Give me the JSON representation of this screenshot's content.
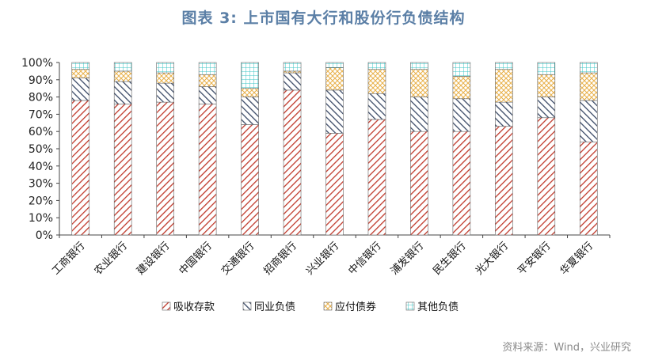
{
  "header": {
    "title": "图表 3:   上市国有大行和股份行负债结构"
  },
  "footer": {
    "source": "资料来源：Wind，兴业研究"
  },
  "chart_data": {
    "type": "bar",
    "stacked": true,
    "categories": [
      "工商银行",
      "农业银行",
      "建设银行",
      "中国银行",
      "交通银行",
      "招商银行",
      "兴业银行",
      "中信银行",
      "浦发银行",
      "民生银行",
      "光大银行",
      "平安银行",
      "华夏银行"
    ],
    "series": [
      {
        "name": "吸收存款",
        "color": "#c0392b",
        "values": [
          78,
          76,
          77,
          76,
          64,
          84,
          59,
          67,
          60,
          60,
          63,
          68,
          54
        ]
      },
      {
        "name": "同业负债",
        "color": "#3b4a66",
        "values": [
          13,
          13,
          11,
          10,
          16,
          10,
          25,
          15,
          20,
          19,
          14,
          12,
          24
        ]
      },
      {
        "name": "应付债券",
        "color": "#e8b04a",
        "values": [
          5,
          6,
          6,
          7,
          5,
          1,
          13,
          14,
          16,
          13,
          19,
          13,
          16
        ]
      },
      {
        "name": "其他负债",
        "color": "#3cc6c6",
        "values": [
          4,
          5,
          6,
          7,
          15,
          5,
          3,
          4,
          4,
          8,
          4,
          7,
          6
        ]
      }
    ],
    "yticks": [
      "0%",
      "10%",
      "20%",
      "30%",
      "40%",
      "50%",
      "60%",
      "70%",
      "80%",
      "90%",
      "100%"
    ],
    "ylim": [
      0,
      100
    ],
    "legend_position": "bottom",
    "grid": false
  }
}
